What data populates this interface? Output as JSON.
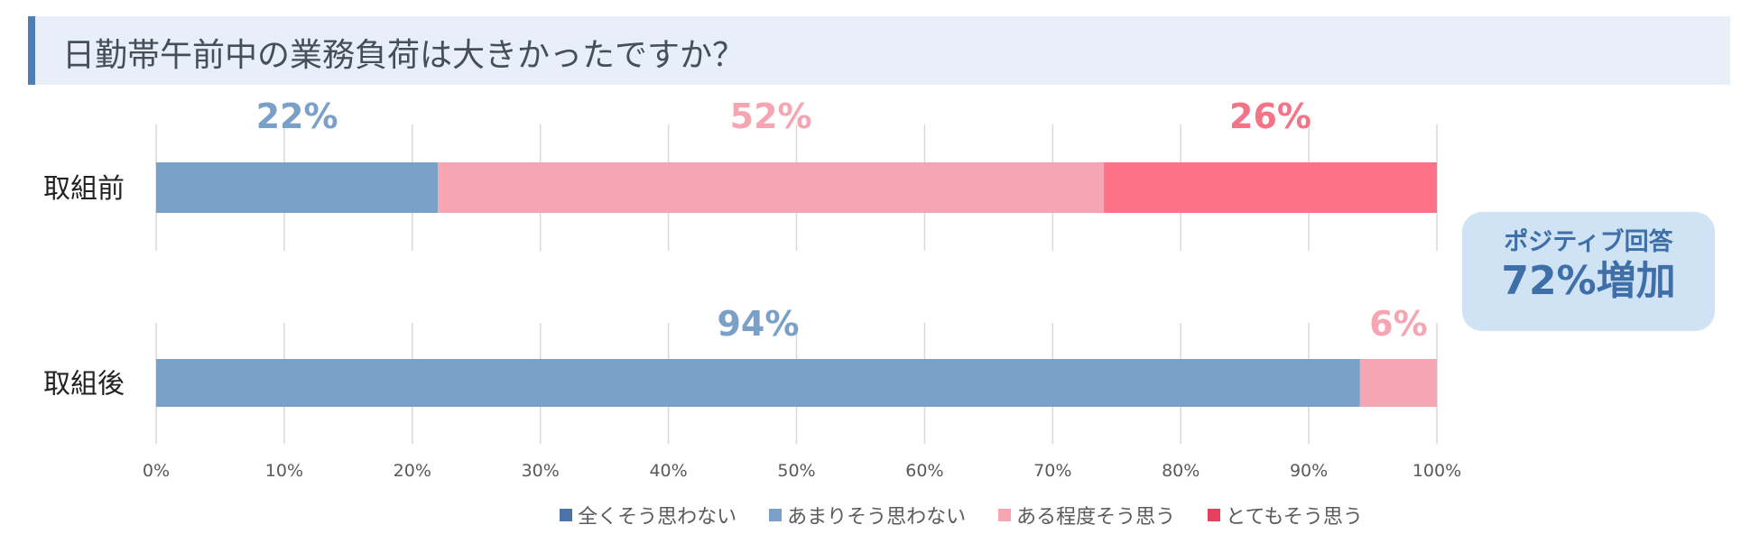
{
  "title": "日勤帯午前中の業務負荷は大きかったですか？",
  "callout": {
    "line1": "ポジティブ回答",
    "line2": "72%増加"
  },
  "legend": [
    {
      "label": "全くそう思わない",
      "color": "#4d74a8"
    },
    {
      "label": "あまりそう思わない",
      "color": "#7ba0c8"
    },
    {
      "label": "ある程度そう思う",
      "color": "#f6a6b2"
    },
    {
      "label": "とてもそう思う",
      "color": "#e5405e"
    }
  ],
  "chart_data": {
    "type": "bar",
    "orientation": "horizontal",
    "stacked": true,
    "categories": [
      "取組前",
      "取組後"
    ],
    "series": [
      {
        "name": "全くそう思わない",
        "values": [
          0,
          0
        ],
        "color": "#4d74a8"
      },
      {
        "name": "あまりそう思わない",
        "values": [
          22,
          94
        ],
        "color": "#7ba0c8"
      },
      {
        "name": "ある程度そう思う",
        "values": [
          52,
          6
        ],
        "color": "#f6a6b2"
      },
      {
        "name": "とてもそう思う",
        "values": [
          26,
          0
        ],
        "color": "#fd7286"
      }
    ],
    "data_labels": [
      {
        "category": 0,
        "series": 1,
        "text": "22%",
        "color": "#7ba0c8"
      },
      {
        "category": 0,
        "series": 2,
        "text": "52%",
        "color": "#f6a6b2"
      },
      {
        "category": 0,
        "series": 3,
        "text": "26%",
        "color": "#f37387"
      },
      {
        "category": 1,
        "series": 1,
        "text": "94%",
        "color": "#7ba0c8"
      },
      {
        "category": 1,
        "series": 2,
        "text": "6%",
        "color": "#f6a6b2"
      }
    ],
    "xlim": [
      0,
      100
    ],
    "xticks": [
      "0%",
      "10%",
      "20%",
      "30%",
      "40%",
      "50%",
      "60%",
      "70%",
      "80%",
      "90%",
      "100%"
    ],
    "grid": true,
    "legend_position": "bottom"
  }
}
